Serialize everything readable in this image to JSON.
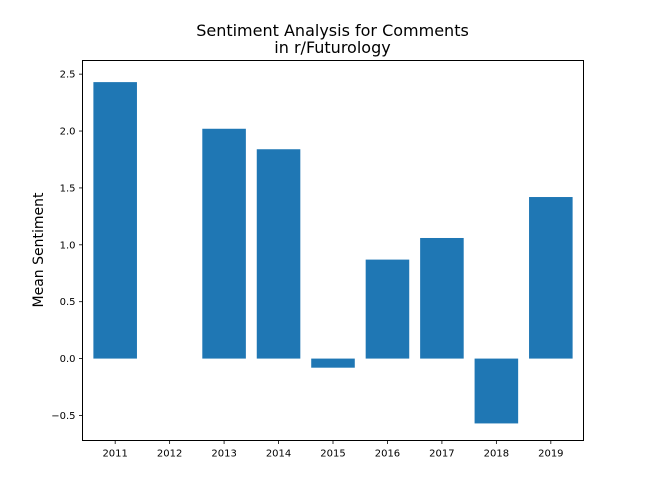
{
  "chart_data": {
    "type": "bar",
    "title_line1": "Sentiment Analysis for Comments",
    "title_line2": "in r/Futurology",
    "xlabel": "",
    "ylabel": "Mean Sentiment",
    "categories": [
      "2011",
      "2012",
      "2013",
      "2014",
      "2015",
      "2016",
      "2017",
      "2018",
      "2019"
    ],
    "values": [
      2.43,
      0.0,
      2.02,
      1.84,
      -0.08,
      0.87,
      1.06,
      -0.57,
      1.42
    ],
    "ylim": [
      -0.72,
      2.62
    ],
    "yticks": [
      -0.5,
      0.0,
      0.5,
      1.0,
      1.5,
      2.0,
      2.5
    ],
    "ytick_labels": [
      "−0.5",
      "0.0",
      "0.5",
      "1.0",
      "1.5",
      "2.0",
      "2.5"
    ],
    "grid": false,
    "legend": "none",
    "bar_color": "#1f77b4"
  }
}
